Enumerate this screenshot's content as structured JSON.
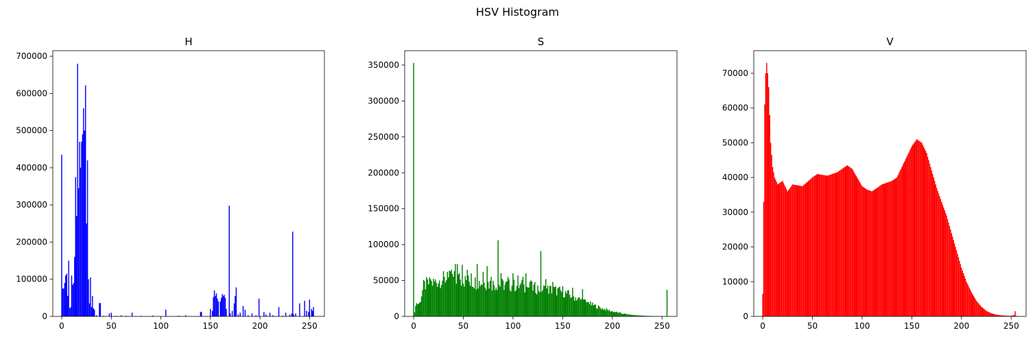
{
  "figure": {
    "suptitle": "HSV Histogram"
  },
  "chart_data": [
    {
      "type": "bar",
      "title": "H",
      "xlabel": "",
      "ylabel": "",
      "color": "#0000ff",
      "xlim": [
        -9,
        265
      ],
      "ylim": [
        0,
        715000
      ],
      "xticks": [
        0,
        50,
        100,
        150,
        200,
        250
      ],
      "yticks": [
        0,
        100000,
        200000,
        300000,
        400000,
        500000,
        600000,
        700000
      ],
      "points": [
        [
          0,
          435000
        ],
        [
          1,
          75000
        ],
        [
          2,
          75000
        ],
        [
          3,
          90000
        ],
        [
          4,
          110000
        ],
        [
          5,
          115000
        ],
        [
          6,
          55000
        ],
        [
          7,
          150000
        ],
        [
          8,
          22000
        ],
        [
          9,
          25000
        ],
        [
          10,
          110000
        ],
        [
          11,
          85000
        ],
        [
          12,
          90000
        ],
        [
          13,
          160000
        ],
        [
          14,
          375000
        ],
        [
          15,
          270000
        ],
        [
          16,
          680000
        ],
        [
          17,
          345000
        ],
        [
          18,
          470000
        ],
        [
          19,
          400000
        ],
        [
          20,
          470000
        ],
        [
          21,
          490000
        ],
        [
          22,
          560000
        ],
        [
          23,
          500000
        ],
        [
          24,
          622000
        ],
        [
          25,
          250000
        ],
        [
          26,
          420000
        ],
        [
          27,
          100000
        ],
        [
          28,
          35000
        ],
        [
          29,
          105000
        ],
        [
          30,
          25000
        ],
        [
          31,
          55000
        ],
        [
          32,
          22000
        ],
        [
          33,
          18000
        ],
        [
          35,
          3000
        ],
        [
          38,
          36000
        ],
        [
          39,
          36000
        ],
        [
          42,
          1500
        ],
        [
          48,
          8000
        ],
        [
          50,
          10000
        ],
        [
          55,
          1500
        ],
        [
          60,
          3000
        ],
        [
          65,
          1500
        ],
        [
          71,
          10000
        ],
        [
          80,
          1500
        ],
        [
          92,
          2500
        ],
        [
          105,
          18000
        ],
        [
          118,
          2000
        ],
        [
          125,
          3000
        ],
        [
          140,
          12000
        ],
        [
          141,
          12000
        ],
        [
          150,
          20000
        ],
        [
          152,
          15000
        ],
        [
          153,
          52000
        ],
        [
          154,
          70000
        ],
        [
          155,
          55000
        ],
        [
          156,
          62000
        ],
        [
          157,
          48000
        ],
        [
          158,
          40000
        ],
        [
          160,
          40000
        ],
        [
          161,
          50000
        ],
        [
          162,
          60000
        ],
        [
          163,
          55000
        ],
        [
          164,
          58000
        ],
        [
          165,
          50000
        ],
        [
          166,
          20000
        ],
        [
          169,
          298000
        ],
        [
          170,
          8000
        ],
        [
          172,
          15000
        ],
        [
          174,
          35000
        ],
        [
          175,
          55000
        ],
        [
          176,
          78000
        ],
        [
          178,
          5000
        ],
        [
          180,
          10000
        ],
        [
          183,
          28000
        ],
        [
          185,
          18000
        ],
        [
          188,
          3000
        ],
        [
          192,
          8000
        ],
        [
          196,
          3000
        ],
        [
          199,
          48000
        ],
        [
          204,
          12000
        ],
        [
          206,
          5000
        ],
        [
          210,
          10000
        ],
        [
          213,
          3000
        ],
        [
          219,
          25000
        ],
        [
          223,
          2000
        ],
        [
          226,
          10000
        ],
        [
          230,
          5000
        ],
        [
          232,
          8000
        ],
        [
          233,
          228000
        ],
        [
          234,
          5000
        ],
        [
          236,
          8000
        ],
        [
          240,
          35000
        ],
        [
          245,
          42000
        ],
        [
          247,
          15000
        ],
        [
          249,
          12000
        ],
        [
          250,
          45000
        ],
        [
          252,
          20000
        ],
        [
          253,
          15000
        ],
        [
          254,
          25000
        ]
      ]
    },
    {
      "type": "bar",
      "title": "S",
      "xlabel": "",
      "ylabel": "",
      "color": "#008000",
      "xlim": [
        -9,
        265
      ],
      "ylim": [
        0,
        370000
      ],
      "xticks": [
        0,
        50,
        100,
        150,
        200,
        250
      ],
      "yticks": [
        0,
        50000,
        100000,
        150000,
        200000,
        250000,
        300000,
        350000
      ],
      "profile": [
        [
          1,
          5000
        ],
        [
          2,
          18000
        ],
        [
          6,
          18000
        ],
        [
          8,
          30000
        ],
        [
          10,
          42000
        ],
        [
          13,
          45000
        ],
        [
          20,
          47000
        ],
        [
          30,
          52000
        ],
        [
          40,
          53000
        ],
        [
          50,
          50000
        ],
        [
          60,
          48000
        ],
        [
          70,
          47000
        ],
        [
          80,
          45000
        ],
        [
          90,
          44000
        ],
        [
          100,
          43000
        ],
        [
          110,
          42000
        ],
        [
          120,
          40000
        ],
        [
          130,
          38000
        ],
        [
          140,
          37000
        ],
        [
          150,
          34000
        ],
        [
          160,
          28000
        ],
        [
          170,
          22000
        ],
        [
          180,
          16000
        ],
        [
          190,
          11000
        ],
        [
          200,
          7000
        ],
        [
          210,
          4000
        ],
        [
          220,
          2000
        ],
        [
          230,
          1000
        ],
        [
          240,
          500
        ],
        [
          250,
          200
        ]
      ],
      "spikes": [
        [
          0,
          353000
        ],
        [
          17,
          52000
        ],
        [
          26,
          50000
        ],
        [
          31,
          55000
        ],
        [
          34,
          62000
        ],
        [
          38,
          65000
        ],
        [
          42,
          73000
        ],
        [
          44,
          73000
        ],
        [
          46,
          60000
        ],
        [
          49,
          72000
        ],
        [
          54,
          65000
        ],
        [
          58,
          60000
        ],
        [
          64,
          73000
        ],
        [
          70,
          62000
        ],
        [
          74,
          70000
        ],
        [
          78,
          55000
        ],
        [
          85,
          106000
        ],
        [
          88,
          60000
        ],
        [
          95,
          55000
        ],
        [
          100,
          60000
        ],
        [
          105,
          57000
        ],
        [
          110,
          55000
        ],
        [
          113,
          60000
        ],
        [
          118,
          50000
        ],
        [
          128,
          91000
        ],
        [
          133,
          52000
        ],
        [
          140,
          48000
        ],
        [
          150,
          42000
        ],
        [
          160,
          40000
        ],
        [
          170,
          38000
        ],
        [
          176,
          20000
        ],
        [
          255,
          37000
        ]
      ]
    },
    {
      "type": "bar",
      "title": "V",
      "xlabel": "",
      "ylabel": "",
      "color": "#ff0000",
      "xlim": [
        -9,
        265
      ],
      "ylim": [
        0,
        76500
      ],
      "xticks": [
        0,
        50,
        100,
        150,
        200,
        250
      ],
      "yticks": [
        0,
        10000,
        20000,
        30000,
        40000,
        50000,
        60000,
        70000
      ],
      "profile": [
        [
          0,
          6500
        ],
        [
          1,
          33000
        ],
        [
          2,
          61000
        ],
        [
          3,
          70000
        ],
        [
          4,
          73000
        ],
        [
          5,
          70000
        ],
        [
          6,
          66000
        ],
        [
          7,
          58000
        ],
        [
          8,
          50000
        ],
        [
          10,
          43000
        ],
        [
          12,
          40000
        ],
        [
          15,
          38000
        ],
        [
          20,
          39000
        ],
        [
          25,
          36000
        ],
        [
          30,
          38000
        ],
        [
          40,
          37500
        ],
        [
          50,
          40000
        ],
        [
          55,
          41000
        ],
        [
          65,
          40500
        ],
        [
          75,
          41500
        ],
        [
          85,
          43500
        ],
        [
          90,
          42500
        ],
        [
          95,
          40000
        ],
        [
          100,
          37500
        ],
        [
          105,
          36500
        ],
        [
          110,
          36000
        ],
        [
          120,
          38000
        ],
        [
          130,
          39000
        ],
        [
          135,
          40000
        ],
        [
          140,
          43000
        ],
        [
          145,
          46000
        ],
        [
          150,
          49000
        ],
        [
          155,
          51000
        ],
        [
          160,
          50000
        ],
        [
          165,
          47000
        ],
        [
          170,
          42000
        ],
        [
          175,
          37000
        ],
        [
          180,
          33000
        ],
        [
          185,
          29000
        ],
        [
          190,
          24000
        ],
        [
          195,
          19000
        ],
        [
          200,
          14000
        ],
        [
          205,
          10000
        ],
        [
          210,
          7000
        ],
        [
          215,
          4500
        ],
        [
          220,
          2800
        ],
        [
          225,
          1600
        ],
        [
          230,
          900
        ],
        [
          235,
          500
        ],
        [
          240,
          300
        ],
        [
          245,
          200
        ],
        [
          250,
          150
        ],
        [
          253,
          400
        ],
        [
          254,
          1500
        ],
        [
          255,
          200
        ]
      ]
    }
  ]
}
